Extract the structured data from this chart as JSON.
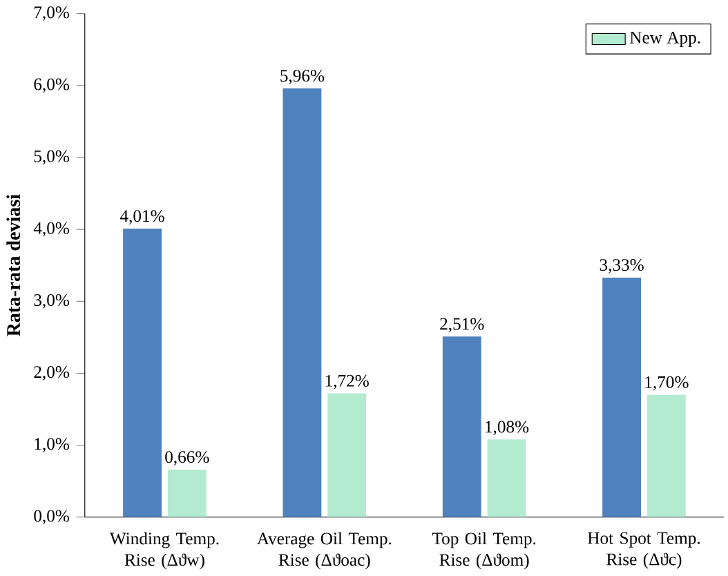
{
  "chart_data": {
    "type": "bar",
    "ylabel": "Rata-rata deviasi",
    "categories": [
      "Winding Temp. Rise (Δϑw)",
      "Average Oil Temp. Rise (Δϑoac)",
      "Top Oil Temp. Rise (Δϑom)",
      "Hot Spot Temp. Rise (Δϑc)"
    ],
    "series": [
      {
        "color": "#4f81bd",
        "values": [
          4.01,
          5.96,
          2.51,
          3.33
        ],
        "value_labels": [
          "4,01%",
          "5,96%",
          "2,51%",
          "3,33%"
        ]
      },
      {
        "name": "New App.",
        "color": "#b3ebd0",
        "values": [
          0.66,
          1.72,
          1.08,
          1.7
        ],
        "value_labels": [
          "0,66%",
          "1,72%",
          "1,08%",
          "1,70%"
        ]
      }
    ],
    "ylim": [
      0,
      7
    ],
    "yticks": [
      {
        "value": 0,
        "label": "0,0%"
      },
      {
        "value": 1,
        "label": "1,0%"
      },
      {
        "value": 2,
        "label": "2,0%"
      },
      {
        "value": 3,
        "label": "3,0%"
      },
      {
        "value": 4,
        "label": "4,0%"
      },
      {
        "value": 5,
        "label": "5,0%"
      },
      {
        "value": 6,
        "label": "6,0%"
      },
      {
        "value": 7,
        "label": "7,0%"
      }
    ],
    "grid": false,
    "legend": "top right"
  }
}
